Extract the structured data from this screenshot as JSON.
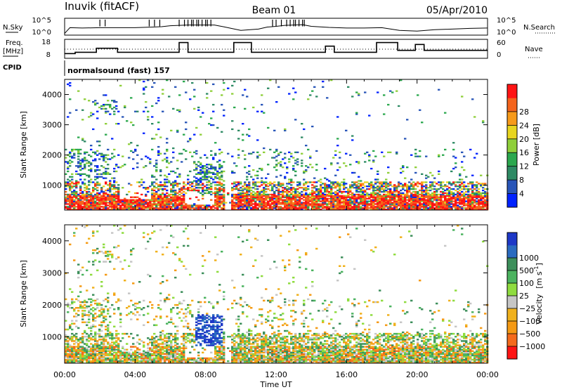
{
  "header": {
    "station": "Inuvik (fitACF)",
    "beam": "Beam 01",
    "date": "05/Apr/2010"
  },
  "top_panels": {
    "nsky_label": "N.Sky",
    "nsky_ticks": [
      "10^5",
      "10^0"
    ],
    "nsearch_label": "N.Search",
    "nsearch_ticks": [
      "10^5",
      "10^0"
    ],
    "freq_label_line1": "Freq.",
    "freq_label_line2": "[MHz]",
    "freq_ticks": [
      "18",
      "8"
    ],
    "nave_label": "Nave",
    "nave_ticks": [
      "60",
      "0"
    ],
    "cpid_label": "CPID",
    "cpid_text": "normalsound (fast) 157"
  },
  "chart_data": [
    {
      "type": "line",
      "name": "nsky-nsearch",
      "x_unit": "hours UT",
      "xlim": [
        0,
        24
      ],
      "ylim_log10": [
        0,
        5
      ],
      "series": [
        {
          "x": [
            0,
            0.3,
            1,
            2,
            3,
            4,
            5,
            5.5,
            6,
            6.5,
            7,
            7.5,
            8,
            8.5,
            9,
            10,
            11,
            11.5,
            12,
            12.5,
            13,
            13.5,
            14,
            15,
            16,
            17,
            18,
            19,
            20,
            21,
            22,
            23,
            24
          ],
          "y": [
            0.5,
            2.2,
            2.1,
            2.2,
            2.2,
            2.2,
            2.4,
            2.5,
            2.8,
            2.9,
            3.0,
            3.0,
            3.0,
            3.0,
            2.5,
            1.4,
            1.8,
            2.4,
            2.6,
            2.9,
            3.0,
            3.1,
            2.6,
            2.3,
            2.1,
            2.1,
            2.2,
            1.4,
            1.2,
            1.6,
            1.8,
            2.0,
            2.1
          ]
        }
      ],
      "spikes_x": [
        2.0,
        2.3,
        4.8,
        5.1,
        5.4,
        6.5,
        6.8,
        7.0,
        7.2,
        7.3,
        7.5,
        7.6,
        7.8,
        8.0,
        8.1,
        8.3,
        11.8,
        12.0,
        12.3,
        12.6,
        12.8,
        13.0,
        13.1,
        13.3,
        13.5,
        13.6
      ]
    },
    {
      "type": "line",
      "name": "freq-nave",
      "x_unit": "hours UT",
      "xlim": [
        0,
        24
      ],
      "ylim": [
        8,
        18
      ],
      "freq_steps": [
        [
          0,
          10.5
        ],
        [
          0.6,
          10.5
        ],
        [
          0.6,
          11.2
        ],
        [
          1.8,
          11.2
        ],
        [
          1.8,
          13.3
        ],
        [
          3.0,
          13.3
        ],
        [
          3.0,
          11.2
        ],
        [
          6.5,
          11.2
        ],
        [
          6.5,
          16.3
        ],
        [
          7.0,
          16.3
        ],
        [
          7.0,
          11.2
        ],
        [
          9.6,
          11.2
        ],
        [
          9.6,
          16.3
        ],
        [
          10.6,
          16.3
        ],
        [
          10.6,
          11.2
        ],
        [
          14.8,
          11.2
        ],
        [
          14.8,
          14.4
        ],
        [
          15.3,
          14.4
        ],
        [
          15.3,
          11.2
        ],
        [
          17.7,
          11.2
        ],
        [
          17.7,
          16.3
        ],
        [
          18.9,
          16.3
        ],
        [
          18.9,
          12.2
        ],
        [
          19.9,
          12.2
        ],
        [
          19.9,
          15.3
        ],
        [
          20.4,
          15.3
        ],
        [
          20.4,
          12.2
        ],
        [
          24,
          12.2
        ]
      ],
      "dotted_level": 12.8
    },
    {
      "type": "heatmap",
      "name": "power",
      "title": "",
      "xlabel": "",
      "ylabel": "Slant Range [km]",
      "xlim": [
        0,
        24
      ],
      "ylim": [
        180,
        4500
      ],
      "x_ticks": [
        "00:00",
        "04:00",
        "08:00",
        "12:00",
        "16:00",
        "20:00",
        "00:00"
      ],
      "y_ticks": [
        1000,
        2000,
        3000,
        4000
      ],
      "colorbar": {
        "label": "Power [dB]",
        "ticks": [
          4,
          8,
          12,
          16,
          20,
          24,
          28
        ],
        "colors": [
          "#0022ff",
          "#2855b8",
          "#2e8a64",
          "#2ba84e",
          "#8fcf3a",
          "#e8d51f",
          "#f79a1a",
          "#f4641c",
          "#ff1414"
        ]
      }
    },
    {
      "type": "heatmap",
      "name": "velocity",
      "title": "",
      "xlabel": "Time UT",
      "ylabel": "Slant Range [km]",
      "xlim": [
        0,
        24
      ],
      "ylim": [
        180,
        4500
      ],
      "x_ticks": [
        "00:00",
        "04:00",
        "08:00",
        "12:00",
        "16:00",
        "20:00",
        "00:00"
      ],
      "y_ticks": [
        1000,
        2000,
        3000,
        4000
      ],
      "colorbar": {
        "label_main": "Velocity",
        "label_unit": "[m s",
        "label_exp": "-1",
        "label_close": "]",
        "ticks": [
          "1000",
          "500",
          "100",
          "25",
          "−25",
          "−100",
          "−500",
          "−1000"
        ],
        "colors": [
          "#1d38c7",
          "#2a6bc0",
          "#3d8f5b",
          "#4bb35f",
          "#8fdc3f",
          "#c6c6c6",
          "#f0b11d",
          "#f59a14",
          "#f46a1c",
          "#ff1414"
        ]
      }
    }
  ],
  "axis": {
    "time_label": "Time UT",
    "range_label": "Slant Range [km]"
  }
}
